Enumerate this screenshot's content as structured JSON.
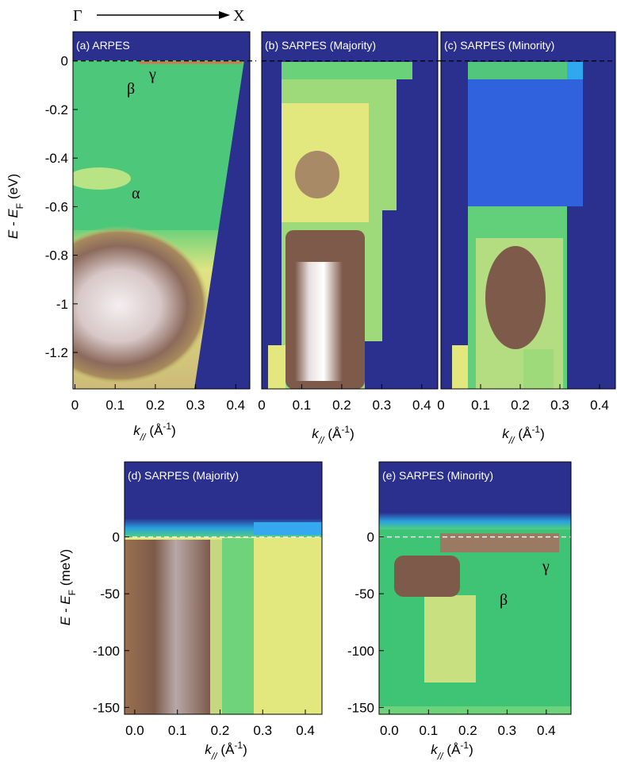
{
  "direction": {
    "from": "Γ",
    "to": "X"
  },
  "chart_data": [
    {
      "type": "heatmap",
      "title": "(a) ARPES",
      "xlim": [
        -0.005,
        0.435
      ],
      "ylim": [
        -1.35,
        0.12
      ],
      "xticks": [
        0,
        0.1,
        0.2,
        0.3,
        0.4
      ],
      "yticks": [
        0,
        -0.2,
        -0.4,
        -0.6,
        -0.8,
        -1.0,
        -1.2
      ],
      "xlabel": {
        "main": "k",
        "sub": "//",
        "unit": "(Å",
        "sup": "-1",
        "close": ")"
      },
      "ylabel": {
        "main": "E - E",
        "sub": "F",
        "unit": "(eV)"
      },
      "annotations": [
        "β",
        "γ",
        "α"
      ]
    },
    {
      "type": "heatmap",
      "title": "(b) SARPES (Majority)",
      "xlim": [
        0,
        0.44
      ],
      "ylim": [
        -1.35,
        0.12
      ],
      "xticks": [
        0,
        0.1,
        0.2,
        0.3,
        0.4
      ],
      "xlabel": {
        "main": "k",
        "sub": "//",
        "unit": "(Å",
        "sup": "-1",
        "close": ")"
      }
    },
    {
      "type": "heatmap",
      "title": "(c) SARPES (Minority)",
      "xlim": [
        0,
        0.44
      ],
      "ylim": [
        -1.35,
        0.12
      ],
      "xticks": [
        0,
        0.1,
        0.2,
        0.3,
        0.4
      ],
      "xlabel": {
        "main": "k",
        "sub": "//",
        "unit": "(Å",
        "sup": "-1",
        "close": ")"
      }
    },
    {
      "type": "heatmap",
      "title": "(d) SARPES (Majority)",
      "xlim": [
        -0.024,
        0.439
      ],
      "ylim": [
        -156,
        66
      ],
      "xticks": [
        {
          "value": 0,
          "label": "0.0"
        },
        0.1,
        0.2,
        0.3,
        0.4
      ],
      "yticks": [
        0,
        -50,
        -100,
        -150
      ],
      "xlabel": {
        "main": "k",
        "sub": "//",
        "unit": "(Å",
        "sup": "-1",
        "close": ")"
      },
      "ylabel": {
        "main": "E - E",
        "sub": "F",
        "unit": "(meV)"
      }
    },
    {
      "type": "heatmap",
      "title": "(e) SARPES (Minority)",
      "xlim": [
        -0.026,
        0.463
      ],
      "ylim": [
        -156,
        66
      ],
      "xticks": [
        {
          "value": 0,
          "label": "0.0"
        },
        0.1,
        0.2,
        0.3,
        0.4
      ],
      "yticks": [
        0,
        -50,
        -100,
        -150
      ],
      "xlabel": {
        "main": "k",
        "sub": "//",
        "unit": "(Å",
        "sup": "-1",
        "close": ")"
      },
      "annotations": [
        "β",
        "γ"
      ]
    }
  ]
}
